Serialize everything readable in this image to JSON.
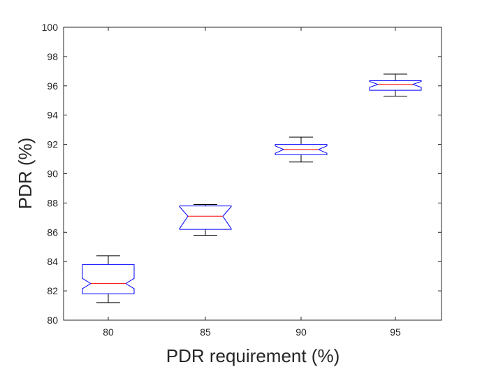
{
  "chart_data": {
    "type": "boxplot",
    "title": "",
    "xlabel": "PDR requirement (%)",
    "ylabel": "PDR (%)",
    "categories": [
      "80",
      "85",
      "90",
      "95"
    ],
    "ylim": [
      80,
      100
    ],
    "yticks": [
      "80",
      "82",
      "84",
      "86",
      "88",
      "90",
      "92",
      "94",
      "96",
      "98",
      "100"
    ],
    "boxes": [
      {
        "category": "80",
        "whisker_low": 81.2,
        "q1": 81.8,
        "median": 82.5,
        "q3": 83.8,
        "whisker_high": 84.4,
        "notch_low": 82.15,
        "notch_high": 82.85
      },
      {
        "category": "85",
        "whisker_low": 85.8,
        "q1": 86.2,
        "median": 87.1,
        "q3": 87.8,
        "whisker_high": 87.9,
        "notch_low": 86.25,
        "notch_high": 87.75
      },
      {
        "category": "90",
        "whisker_low": 90.8,
        "q1": 91.3,
        "median": 91.65,
        "q3": 92.0,
        "whisker_high": 92.5,
        "notch_low": 91.4,
        "notch_high": 91.9
      },
      {
        "category": "95",
        "whisker_low": 95.3,
        "q1": 95.7,
        "median": 96.1,
        "q3": 96.35,
        "whisker_high": 96.8,
        "notch_low": 95.9,
        "notch_high": 96.3
      }
    ],
    "grid": false,
    "colors": {
      "box": "#0000ff",
      "median": "#ff0000",
      "whisker": "#000000",
      "axis": "#262626"
    }
  }
}
